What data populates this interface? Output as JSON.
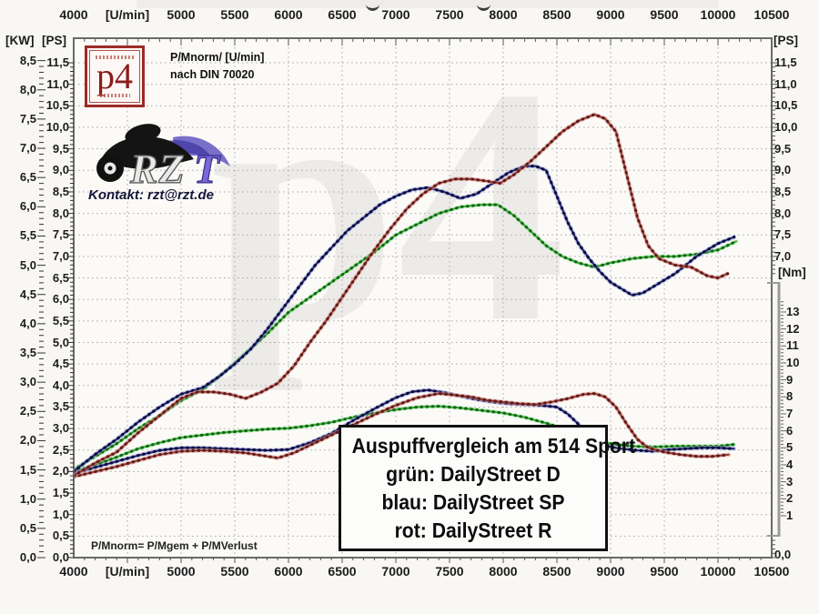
{
  "legend": {
    "title": "Auspuffvergleich am 514 Sport",
    "lines": [
      "grün: DailyStreet D",
      "blau: DailyStreet SP",
      "rot: DailyStreet R"
    ]
  },
  "texts": {
    "pm_header_1": "P/Mnorm/ [U/min]",
    "pm_header_2": "nach DIN 70020",
    "kontakt": "Kontakt: rzt@rzt.de",
    "formula": "P/Mnorm= P/Mgem + P/MVerlust",
    "watermark": "p4",
    "p4_logo_text": "p4",
    "rzt_letters": "RZT"
  },
  "axes": {
    "x": {
      "unit": "[U/min]",
      "ticks": [
        {
          "label": "4000",
          "rpm": 4000
        },
        {
          "label": "[U/min]",
          "rpm": 4500
        },
        {
          "label": "5000",
          "rpm": 5000
        },
        {
          "label": "5500",
          "rpm": 5500
        },
        {
          "label": "6000",
          "rpm": 6000
        },
        {
          "label": "6500",
          "rpm": 6500
        },
        {
          "label": "7000",
          "rpm": 7000
        },
        {
          "label": "7500",
          "rpm": 7500
        },
        {
          "label": "8000",
          "rpm": 8000
        },
        {
          "label": "8500",
          "rpm": 8500
        },
        {
          "label": "9000",
          "rpm": 9000
        },
        {
          "label": "9500",
          "rpm": 9500
        },
        {
          "label": "10000",
          "rpm": 10000
        },
        {
          "label": "10500",
          "rpm": 10500
        }
      ]
    },
    "left_kw": {
      "title": "[KW]",
      "labels": [
        "8,5",
        "8,0",
        "7,5",
        "7,0",
        "6,5",
        "6,0",
        "5,5",
        "5,0",
        "4,5",
        "4,0",
        "3,5",
        "3,0",
        "2,5",
        "2,0",
        "1,5",
        "1,0",
        "0,5",
        "0,0"
      ]
    },
    "left_ps": {
      "title": "[PS]",
      "labels": [
        "11,5",
        "11,0",
        "10,5",
        "10,0",
        "9,5",
        "9,0",
        "8,5",
        "8,0",
        "7,5",
        "7,0",
        "6,5",
        "6,0",
        "5,5",
        "5,0",
        "4,5",
        "4,0",
        "3,5",
        "3,0",
        "2,5",
        "2,0",
        "1,5",
        "1,0",
        "0,5",
        "0,0"
      ]
    },
    "right_ps": {
      "title": "[PS]",
      "labels": [
        "11,5",
        "11,0",
        "10,5",
        "10,0",
        "9,5",
        "9,0",
        "8,5",
        "8,0",
        "7,5",
        "7,0"
      ],
      "bottom_label": "0,0"
    },
    "right_n": {
      "title": "[Nm]",
      "labels": [
        "13",
        "12",
        "11",
        "10",
        "9",
        "8",
        "7",
        "6",
        "5",
        "4",
        "3",
        "2",
        "1"
      ]
    }
  },
  "colors": {
    "green_core": "#28a428",
    "green_halo": "#a6e8a6",
    "green_dot": "#156615",
    "blue_core": "#1b1b66",
    "blue_halo": "#9aa3e0",
    "blue_dot": "#0b0b3c",
    "red_core": "#96342e",
    "red_halo": "#dd9a94",
    "red_dot": "#5e1d1a",
    "frame": "#6a6a6a",
    "grid": "#ababab",
    "bracket": "#9a9a9a",
    "p4_red": "#9c2b26",
    "legend_border": "#111111"
  },
  "chart_data": {
    "type": "line",
    "title_box": "Auspuffvergleich am 514 Sport",
    "x_axis": {
      "label": "[U/min]",
      "range": [
        4000,
        10500
      ],
      "gridline_step": 500
    },
    "y_axis_left_ps": {
      "label": "[PS]",
      "range": [
        0,
        11.5
      ],
      "gridline_step": 0.5
    },
    "y_axis_left_kw": {
      "label": "[KW]",
      "range": [
        0,
        8.5
      ]
    },
    "y_axis_right_n": {
      "label": "[Nm]",
      "range": [
        1,
        13
      ]
    },
    "grid": true,
    "series": [
      {
        "id": "torque-green",
        "name": "grün: DailyStreet D (Drehmoment, Nm)",
        "axis": "n",
        "color": "green",
        "points": [
          [
            4000,
            3.6
          ],
          [
            4200,
            4.0
          ],
          [
            4400,
            4.45
          ],
          [
            4600,
            4.95
          ],
          [
            4800,
            5.3
          ],
          [
            5000,
            5.6
          ],
          [
            5200,
            5.75
          ],
          [
            5400,
            5.9
          ],
          [
            5600,
            6.0
          ],
          [
            5800,
            6.1
          ],
          [
            6000,
            6.15
          ],
          [
            6200,
            6.3
          ],
          [
            6400,
            6.5
          ],
          [
            6600,
            6.8
          ],
          [
            6800,
            7.05
          ],
          [
            7000,
            7.25
          ],
          [
            7200,
            7.4
          ],
          [
            7400,
            7.45
          ],
          [
            7600,
            7.35
          ],
          [
            7800,
            7.2
          ],
          [
            8000,
            7.05
          ],
          [
            8200,
            6.8
          ],
          [
            8400,
            6.45
          ],
          [
            8600,
            6.05
          ],
          [
            8800,
            5.55
          ],
          [
            9000,
            5.25
          ],
          [
            9200,
            5.1
          ],
          [
            9400,
            5.05
          ],
          [
            9600,
            5.1
          ],
          [
            9800,
            5.1
          ],
          [
            10000,
            5.1
          ],
          [
            10150,
            5.2
          ]
        ]
      },
      {
        "id": "torque-blue",
        "name": "blau: DailyStreet SP (Drehmoment, Nm)",
        "axis": "n",
        "color": "blue",
        "points": [
          [
            4000,
            3.5
          ],
          [
            4200,
            3.85
          ],
          [
            4400,
            4.2
          ],
          [
            4600,
            4.55
          ],
          [
            4800,
            4.85
          ],
          [
            5000,
            5.0
          ],
          [
            5200,
            5.0
          ],
          [
            5400,
            4.95
          ],
          [
            5600,
            4.9
          ],
          [
            5800,
            4.85
          ],
          [
            6000,
            4.9
          ],
          [
            6200,
            5.3
          ],
          [
            6400,
            5.85
          ],
          [
            6600,
            6.6
          ],
          [
            6800,
            7.3
          ],
          [
            7000,
            7.95
          ],
          [
            7150,
            8.3
          ],
          [
            7300,
            8.4
          ],
          [
            7450,
            8.25
          ],
          [
            7600,
            8.05
          ],
          [
            7750,
            7.85
          ],
          [
            7900,
            7.7
          ],
          [
            8050,
            7.6
          ],
          [
            8200,
            7.55
          ],
          [
            8350,
            7.5
          ],
          [
            8500,
            7.4
          ],
          [
            8600,
            7.0
          ],
          [
            8700,
            6.4
          ],
          [
            8800,
            5.7
          ],
          [
            8900,
            5.25
          ],
          [
            9000,
            5.05
          ],
          [
            9100,
            4.95
          ],
          [
            9250,
            4.85
          ],
          [
            9400,
            4.8
          ],
          [
            9550,
            4.9
          ],
          [
            9700,
            4.95
          ],
          [
            9850,
            5.0
          ],
          [
            10000,
            5.0
          ],
          [
            10150,
            4.95
          ]
        ]
      },
      {
        "id": "torque-red",
        "name": "rot: DailyStreet R (Drehmoment, Nm)",
        "axis": "n",
        "color": "red",
        "points": [
          [
            4000,
            3.3
          ],
          [
            4200,
            3.6
          ],
          [
            4400,
            3.9
          ],
          [
            4600,
            4.25
          ],
          [
            4800,
            4.6
          ],
          [
            5000,
            4.8
          ],
          [
            5200,
            4.85
          ],
          [
            5400,
            4.8
          ],
          [
            5600,
            4.7
          ],
          [
            5750,
            4.55
          ],
          [
            5900,
            4.4
          ],
          [
            6050,
            4.7
          ],
          [
            6200,
            5.15
          ],
          [
            6400,
            5.75
          ],
          [
            6600,
            6.35
          ],
          [
            6800,
            6.95
          ],
          [
            7000,
            7.5
          ],
          [
            7200,
            7.95
          ],
          [
            7400,
            8.2
          ],
          [
            7550,
            8.1
          ],
          [
            7700,
            8.0
          ],
          [
            7850,
            7.8
          ],
          [
            8000,
            7.7
          ],
          [
            8150,
            7.6
          ],
          [
            8300,
            7.55
          ],
          [
            8450,
            7.7
          ],
          [
            8600,
            7.9
          ],
          [
            8750,
            8.15
          ],
          [
            8850,
            8.2
          ],
          [
            8950,
            8.0
          ],
          [
            9050,
            7.4
          ],
          [
            9150,
            6.4
          ],
          [
            9250,
            5.5
          ],
          [
            9350,
            5.0
          ],
          [
            9500,
            4.75
          ],
          [
            9650,
            4.6
          ],
          [
            9800,
            4.5
          ],
          [
            9950,
            4.5
          ],
          [
            10100,
            4.6
          ]
        ]
      },
      {
        "id": "power-green",
        "name": "grün: DailyStreet D (Leistung, PS)",
        "axis": "ps",
        "color": "green",
        "points": [
          [
            4000,
            2.05
          ],
          [
            4200,
            2.35
          ],
          [
            4400,
            2.65
          ],
          [
            4600,
            3.0
          ],
          [
            4800,
            3.3
          ],
          [
            5000,
            3.65
          ],
          [
            5200,
            3.9
          ],
          [
            5400,
            4.3
          ],
          [
            5600,
            4.75
          ],
          [
            5800,
            5.2
          ],
          [
            6000,
            5.7
          ],
          [
            6200,
            6.05
          ],
          [
            6400,
            6.4
          ],
          [
            6600,
            6.75
          ],
          [
            6800,
            7.1
          ],
          [
            7000,
            7.5
          ],
          [
            7200,
            7.75
          ],
          [
            7400,
            8.0
          ],
          [
            7600,
            8.15
          ],
          [
            7800,
            8.2
          ],
          [
            7950,
            8.2
          ],
          [
            8100,
            7.95
          ],
          [
            8250,
            7.6
          ],
          [
            8400,
            7.25
          ],
          [
            8550,
            7.0
          ],
          [
            8700,
            6.85
          ],
          [
            8850,
            6.75
          ],
          [
            9000,
            6.85
          ],
          [
            9200,
            6.95
          ],
          [
            9400,
            7.0
          ],
          [
            9600,
            7.0
          ],
          [
            9800,
            7.05
          ],
          [
            10000,
            7.15
          ],
          [
            10170,
            7.35
          ]
        ]
      },
      {
        "id": "power-blue",
        "name": "blau: DailyStreet SP (Leistung, PS)",
        "axis": "ps",
        "color": "blue",
        "points": [
          [
            4000,
            2.0
          ],
          [
            4200,
            2.4
          ],
          [
            4400,
            2.75
          ],
          [
            4600,
            3.15
          ],
          [
            4800,
            3.5
          ],
          [
            5000,
            3.8
          ],
          [
            5200,
            3.95
          ],
          [
            5350,
            4.2
          ],
          [
            5500,
            4.5
          ],
          [
            5650,
            4.85
          ],
          [
            5800,
            5.3
          ],
          [
            5950,
            5.8
          ],
          [
            6100,
            6.3
          ],
          [
            6250,
            6.8
          ],
          [
            6400,
            7.2
          ],
          [
            6550,
            7.6
          ],
          [
            6700,
            7.9
          ],
          [
            6850,
            8.2
          ],
          [
            7000,
            8.4
          ],
          [
            7150,
            8.55
          ],
          [
            7300,
            8.6
          ],
          [
            7450,
            8.5
          ],
          [
            7600,
            8.35
          ],
          [
            7750,
            8.45
          ],
          [
            7900,
            8.7
          ],
          [
            8050,
            8.95
          ],
          [
            8200,
            9.1
          ],
          [
            8300,
            9.1
          ],
          [
            8400,
            9.0
          ],
          [
            8500,
            8.4
          ],
          [
            8600,
            7.8
          ],
          [
            8700,
            7.3
          ],
          [
            8800,
            6.95
          ],
          [
            8900,
            6.65
          ],
          [
            9000,
            6.4
          ],
          [
            9100,
            6.25
          ],
          [
            9200,
            6.1
          ],
          [
            9300,
            6.15
          ],
          [
            9400,
            6.3
          ],
          [
            9500,
            6.45
          ],
          [
            9600,
            6.6
          ],
          [
            9700,
            6.8
          ],
          [
            9800,
            7.0
          ],
          [
            9900,
            7.15
          ],
          [
            10000,
            7.3
          ],
          [
            10150,
            7.45
          ]
        ]
      },
      {
        "id": "power-red",
        "name": "rot: DailyStreet R (Leistung, PS)",
        "axis": "ps",
        "color": "red",
        "points": [
          [
            4000,
            1.9
          ],
          [
            4200,
            2.2
          ],
          [
            4400,
            2.45
          ],
          [
            4600,
            2.9
          ],
          [
            4800,
            3.3
          ],
          [
            5000,
            3.7
          ],
          [
            5150,
            3.85
          ],
          [
            5300,
            3.85
          ],
          [
            5450,
            3.8
          ],
          [
            5600,
            3.7
          ],
          [
            5750,
            3.85
          ],
          [
            5900,
            4.05
          ],
          [
            6050,
            4.45
          ],
          [
            6200,
            5.0
          ],
          [
            6350,
            5.5
          ],
          [
            6500,
            6.05
          ],
          [
            6650,
            6.6
          ],
          [
            6800,
            7.15
          ],
          [
            6950,
            7.65
          ],
          [
            7100,
            8.1
          ],
          [
            7250,
            8.45
          ],
          [
            7400,
            8.7
          ],
          [
            7550,
            8.8
          ],
          [
            7700,
            8.8
          ],
          [
            7850,
            8.75
          ],
          [
            7970,
            8.7
          ],
          [
            8100,
            8.9
          ],
          [
            8250,
            9.2
          ],
          [
            8400,
            9.55
          ],
          [
            8550,
            9.9
          ],
          [
            8700,
            10.15
          ],
          [
            8850,
            10.3
          ],
          [
            8950,
            10.2
          ],
          [
            9050,
            9.9
          ],
          [
            9150,
            8.9
          ],
          [
            9250,
            7.9
          ],
          [
            9350,
            7.25
          ],
          [
            9450,
            6.95
          ],
          [
            9600,
            6.8
          ],
          [
            9750,
            6.75
          ],
          [
            9900,
            6.55
          ],
          [
            10000,
            6.5
          ],
          [
            10090,
            6.6
          ]
        ]
      }
    ]
  }
}
